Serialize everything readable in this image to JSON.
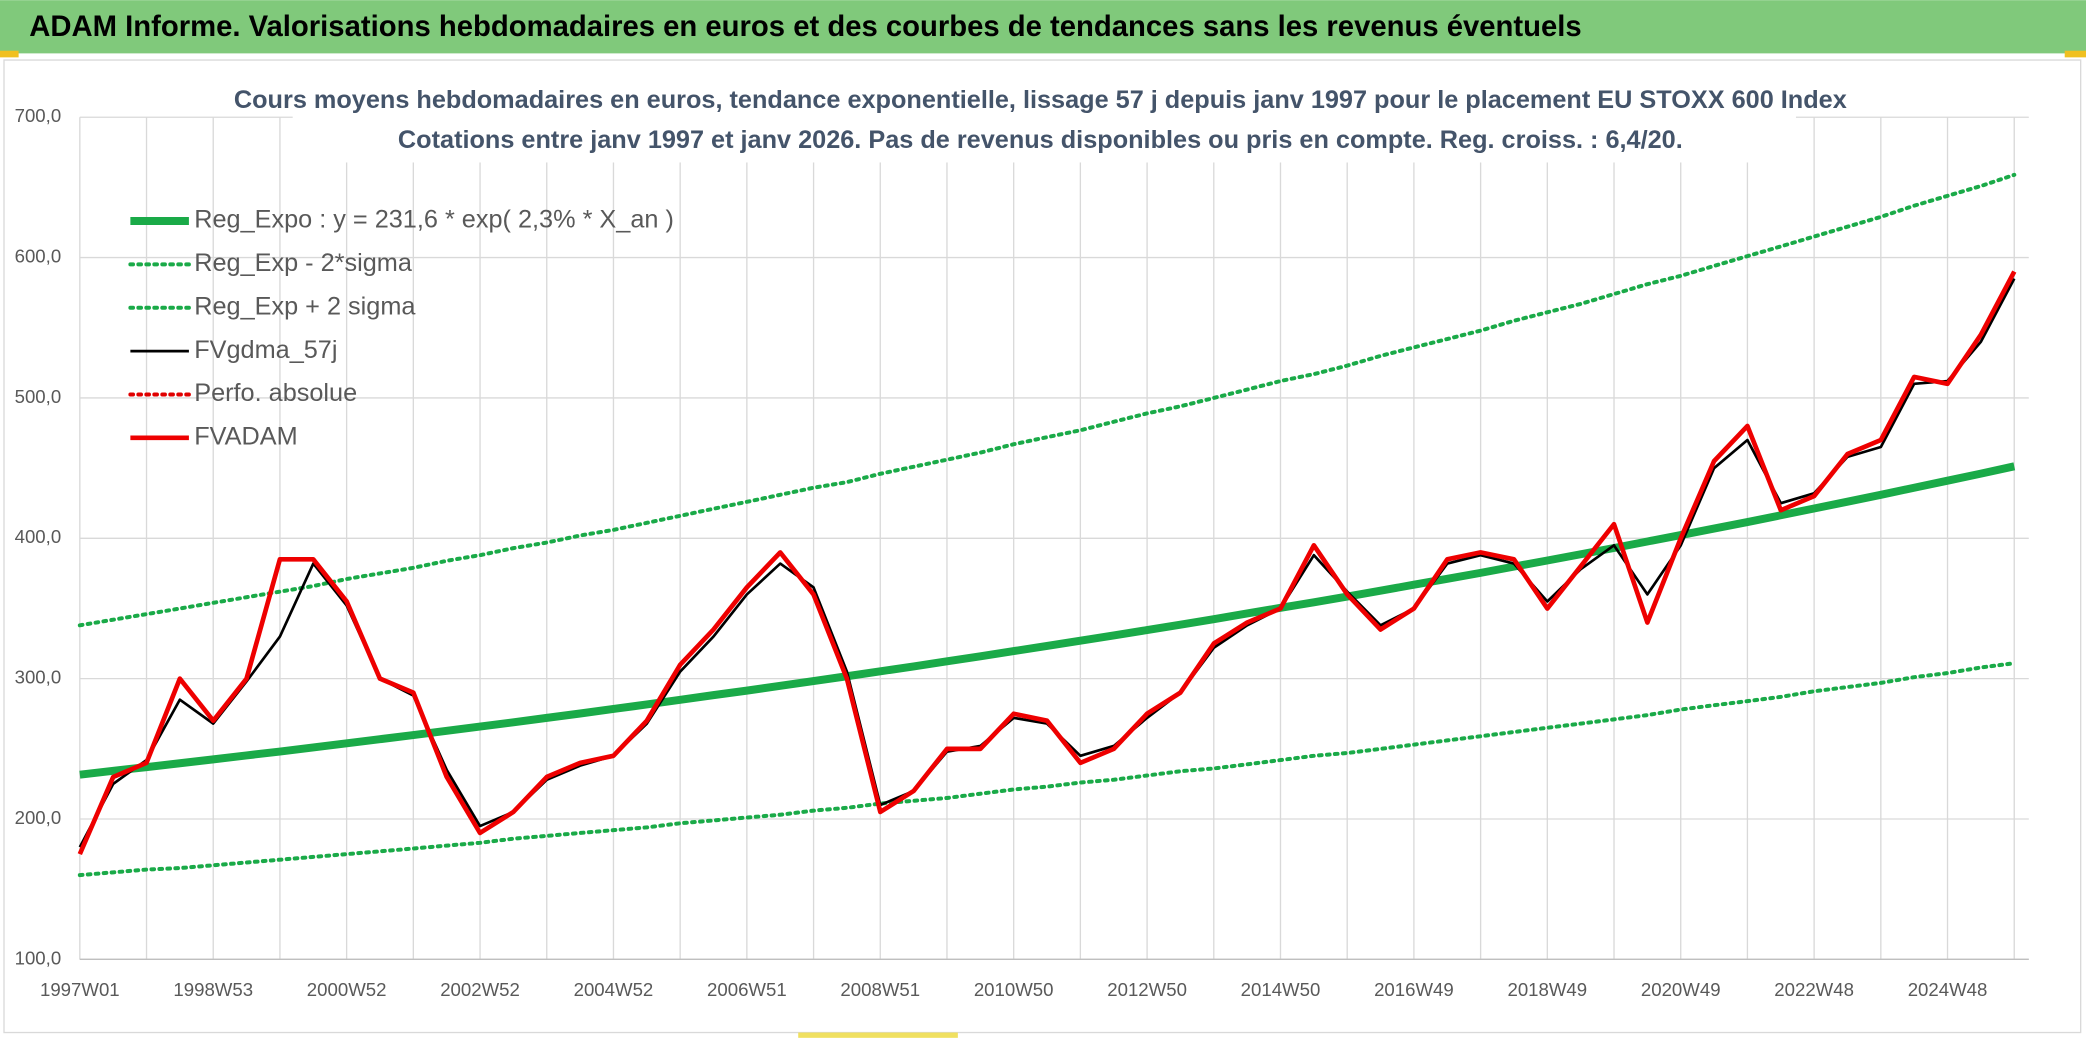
{
  "header": {
    "title": "ADAM Informe. Valorisations hebdomadaires en euros et des courbes de tendances sans les revenus éventuels"
  },
  "chart_data": {
    "type": "line",
    "title": "Cours moyens hebdomadaires en euros, tendance exponentielle, lissage 57 j depuis janv 1997 pour le placement EU STOXX 600 Index",
    "subtitle": "Cotations entre janv 1997 et janv 2026. Pas de revenus disponibles ou pris en compte. Reg. croiss. : 6,4/20.",
    "categories": [
      "1997W01",
      null,
      null,
      null,
      "1998W53",
      null,
      null,
      null,
      "2000W52",
      null,
      null,
      null,
      "2002W52",
      null,
      null,
      null,
      "2004W52",
      null,
      null,
      null,
      "2006W51",
      null,
      null,
      null,
      "2008W51",
      null,
      null,
      null,
      "2010W50",
      null,
      null,
      null,
      "2012W50",
      null,
      null,
      null,
      "2014W50",
      null,
      null,
      null,
      "2016W49",
      null,
      null,
      null,
      "2018W49",
      null,
      null,
      null,
      "2020W49",
      null,
      null,
      null,
      "2022W48",
      null,
      null,
      null,
      "2024W48",
      null,
      null
    ],
    "ylim": [
      100,
      700
    ],
    "yticks": [
      {
        "value": 100,
        "label": "100,0"
      },
      {
        "value": 200,
        "label": "200,0"
      },
      {
        "value": 300,
        "label": "300,0"
      },
      {
        "value": 400,
        "label": "400,0"
      },
      {
        "value": 500,
        "label": "500,0"
      },
      {
        "value": 600,
        "label": "600,0"
      },
      {
        "value": 700,
        "label": "700,0"
      }
    ],
    "grid": true,
    "legend": "upper left",
    "series": [
      {
        "name": "Reg_Expo : y = 231,6 * exp( 2,3% *  X_an )",
        "color": "#1aaa48",
        "style": "bold",
        "values": [
          231.6,
          234.3,
          237.0,
          239.7,
          242.5,
          245.3,
          248.1,
          251.0,
          253.9,
          256.9,
          259.8,
          262.8,
          265.9,
          268.9,
          272.0,
          275.2,
          278.4,
          281.6,
          284.9,
          288.2,
          291.5,
          294.9,
          298.3,
          301.7,
          305.2,
          308.7,
          312.3,
          315.9,
          319.6,
          323.3,
          327.0,
          330.8,
          334.6,
          338.5,
          342.4,
          346.4,
          350.4,
          354.4,
          358.5,
          362.7,
          366.9,
          371.1,
          375.4,
          379.8,
          384.2,
          388.6,
          393.1,
          397.7,
          402.3,
          406.9,
          411.6,
          416.4,
          421.2,
          426.1,
          431.0,
          436.0,
          441.0,
          446.1,
          451.3
        ]
      },
      {
        "name": "Reg_Exp - 2*sigma",
        "color": "#1aaa48",
        "style": "dotted",
        "values": [
          160,
          162,
          164,
          165,
          167,
          169,
          171,
          173,
          175,
          177,
          179,
          181,
          183,
          186,
          188,
          190,
          192,
          194,
          197,
          199,
          201,
          203,
          206,
          208,
          211,
          213,
          215,
          218,
          221,
          223,
          226,
          228,
          231,
          234,
          236,
          239,
          242,
          245,
          247,
          250,
          253,
          256,
          259,
          262,
          265,
          268,
          271,
          274,
          278,
          281,
          284,
          287,
          291,
          294,
          297,
          301,
          304,
          308,
          311
        ]
      },
      {
        "name": "Reg_Exp + 2 sigma",
        "color": "#1aaa48",
        "style": "dotted",
        "values": [
          338,
          342,
          346,
          350,
          354,
          358,
          362,
          366,
          371,
          375,
          379,
          384,
          388,
          393,
          397,
          402,
          406,
          411,
          416,
          421,
          426,
          431,
          436,
          440,
          446,
          451,
          456,
          461,
          467,
          472,
          477,
          483,
          489,
          494,
          500,
          506,
          512,
          517,
          523,
          530,
          536,
          542,
          548,
          555,
          561,
          567,
          574,
          581,
          587,
          594,
          601,
          608,
          615,
          622,
          629,
          637,
          644,
          651,
          659
        ]
      },
      {
        "name": "FVgdma_57j",
        "color": "#000000",
        "style": "thin",
        "values": [
          180,
          225,
          242,
          285,
          268,
          298,
          330,
          382,
          352,
          300,
          288,
          235,
          195,
          205,
          228,
          238,
          245,
          268,
          305,
          330,
          360,
          382,
          365,
          305,
          210,
          220,
          248,
          252,
          272,
          268,
          245,
          252,
          272,
          290,
          322,
          338,
          350,
          388,
          362,
          338,
          350,
          382,
          388,
          382,
          355,
          378,
          395,
          360,
          395,
          450,
          470,
          425,
          432,
          458,
          465,
          510,
          512,
          540,
          585
        ]
      },
      {
        "name": "Perfo. absolue",
        "color": "#e00000",
        "style": "dotted",
        "values": [
          null,
          null,
          null,
          null,
          null,
          null,
          null,
          null,
          null,
          null,
          null,
          null,
          null,
          null,
          null,
          null,
          null,
          null,
          null,
          null,
          null,
          null,
          null,
          null,
          null,
          null,
          null,
          null,
          null,
          null,
          null,
          null,
          null,
          null,
          null,
          null,
          null,
          null,
          null,
          null,
          null,
          null,
          null,
          null,
          null,
          null,
          null,
          null,
          null,
          null,
          null,
          null,
          null,
          null,
          null,
          null,
          null,
          null,
          null
        ]
      },
      {
        "name": "FVADAM",
        "color": "#ee0000",
        "style": "medium",
        "values": [
          175,
          230,
          240,
          300,
          270,
          300,
          385,
          385,
          355,
          300,
          290,
          230,
          190,
          205,
          230,
          240,
          245,
          270,
          310,
          335,
          365,
          390,
          360,
          300,
          205,
          220,
          250,
          250,
          275,
          270,
          240,
          250,
          275,
          290,
          325,
          340,
          350,
          395,
          360,
          335,
          350,
          385,
          390,
          385,
          350,
          380,
          410,
          340,
          400,
          455,
          480,
          420,
          430,
          460,
          470,
          515,
          510,
          545,
          590
        ]
      }
    ]
  }
}
